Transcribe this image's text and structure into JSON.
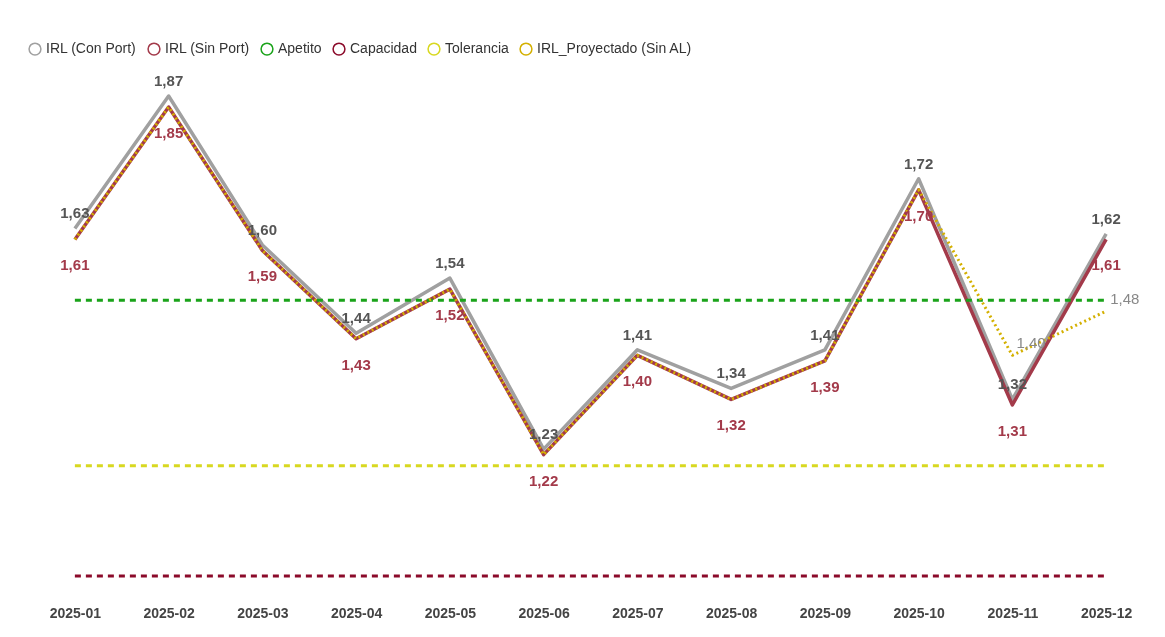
{
  "chart_data": {
    "type": "line",
    "categories": [
      "2025-01",
      "2025-02",
      "2025-03",
      "2025-04",
      "2025-05",
      "2025-06",
      "2025-07",
      "2025-08",
      "2025-09",
      "2025-10",
      "2025-11",
      "2025-12"
    ],
    "tick_labels": "x",
    "grid": false,
    "legend": "top left",
    "marker": "none",
    "series": [
      {
        "name": "IRL (Con Port)",
        "color": "#a0a0a0",
        "line_style": "solid",
        "values": [
          1.63,
          1.87,
          1.6,
          1.44,
          1.54,
          1.23,
          1.41,
          1.34,
          1.41,
          1.72,
          1.32,
          1.62
        ],
        "value_labels": [
          "1,63",
          "1,87",
          "1,60",
          "1,44",
          "1,54",
          "1,23",
          "1,41",
          "1,34",
          "1,41",
          "1,72",
          "1,32",
          "1,62"
        ]
      },
      {
        "name": "IRL (Sin Port)",
        "color": "#a33a4a",
        "line_style": "solid",
        "values": [
          1.61,
          1.85,
          1.59,
          1.43,
          1.52,
          1.22,
          1.4,
          1.32,
          1.39,
          1.7,
          1.31,
          1.61
        ],
        "value_labels": [
          "1,61",
          "1,85",
          "1,59",
          "1,43",
          "1,52",
          "1,22",
          "1,40",
          "1,32",
          "1,39",
          "1,70",
          "1,31",
          "1,61"
        ]
      },
      {
        "name": "Apetito",
        "color": "#1aa31a",
        "line_style": "dashed",
        "values": [
          1.5,
          1.5,
          1.5,
          1.5,
          1.5,
          1.5,
          1.5,
          1.5,
          1.5,
          1.5,
          1.5,
          1.5
        ]
      },
      {
        "name": "Capacidad",
        "color": "#8b0a2a",
        "line_style": "dashed",
        "values": [
          1.0,
          1.0,
          1.0,
          1.0,
          1.0,
          1.0,
          1.0,
          1.0,
          1.0,
          1.0,
          1.0,
          1.0
        ]
      },
      {
        "name": "Tolerancia",
        "color": "#d8d820",
        "line_style": "dashed",
        "values": [
          1.2,
          1.2,
          1.2,
          1.2,
          1.2,
          1.2,
          1.2,
          1.2,
          1.2,
          1.2,
          1.2,
          1.2
        ]
      },
      {
        "name": "IRL_Proyectado (Sin AL)",
        "color": "#d4b000",
        "line_style": "dotted",
        "values": [
          1.61,
          1.85,
          1.59,
          1.43,
          1.52,
          1.22,
          1.4,
          1.32,
          1.39,
          1.7,
          1.4,
          1.48
        ],
        "value_labels": [
          null,
          null,
          null,
          null,
          null,
          null,
          null,
          null,
          null,
          null,
          "1,40",
          "1,48"
        ]
      }
    ]
  }
}
